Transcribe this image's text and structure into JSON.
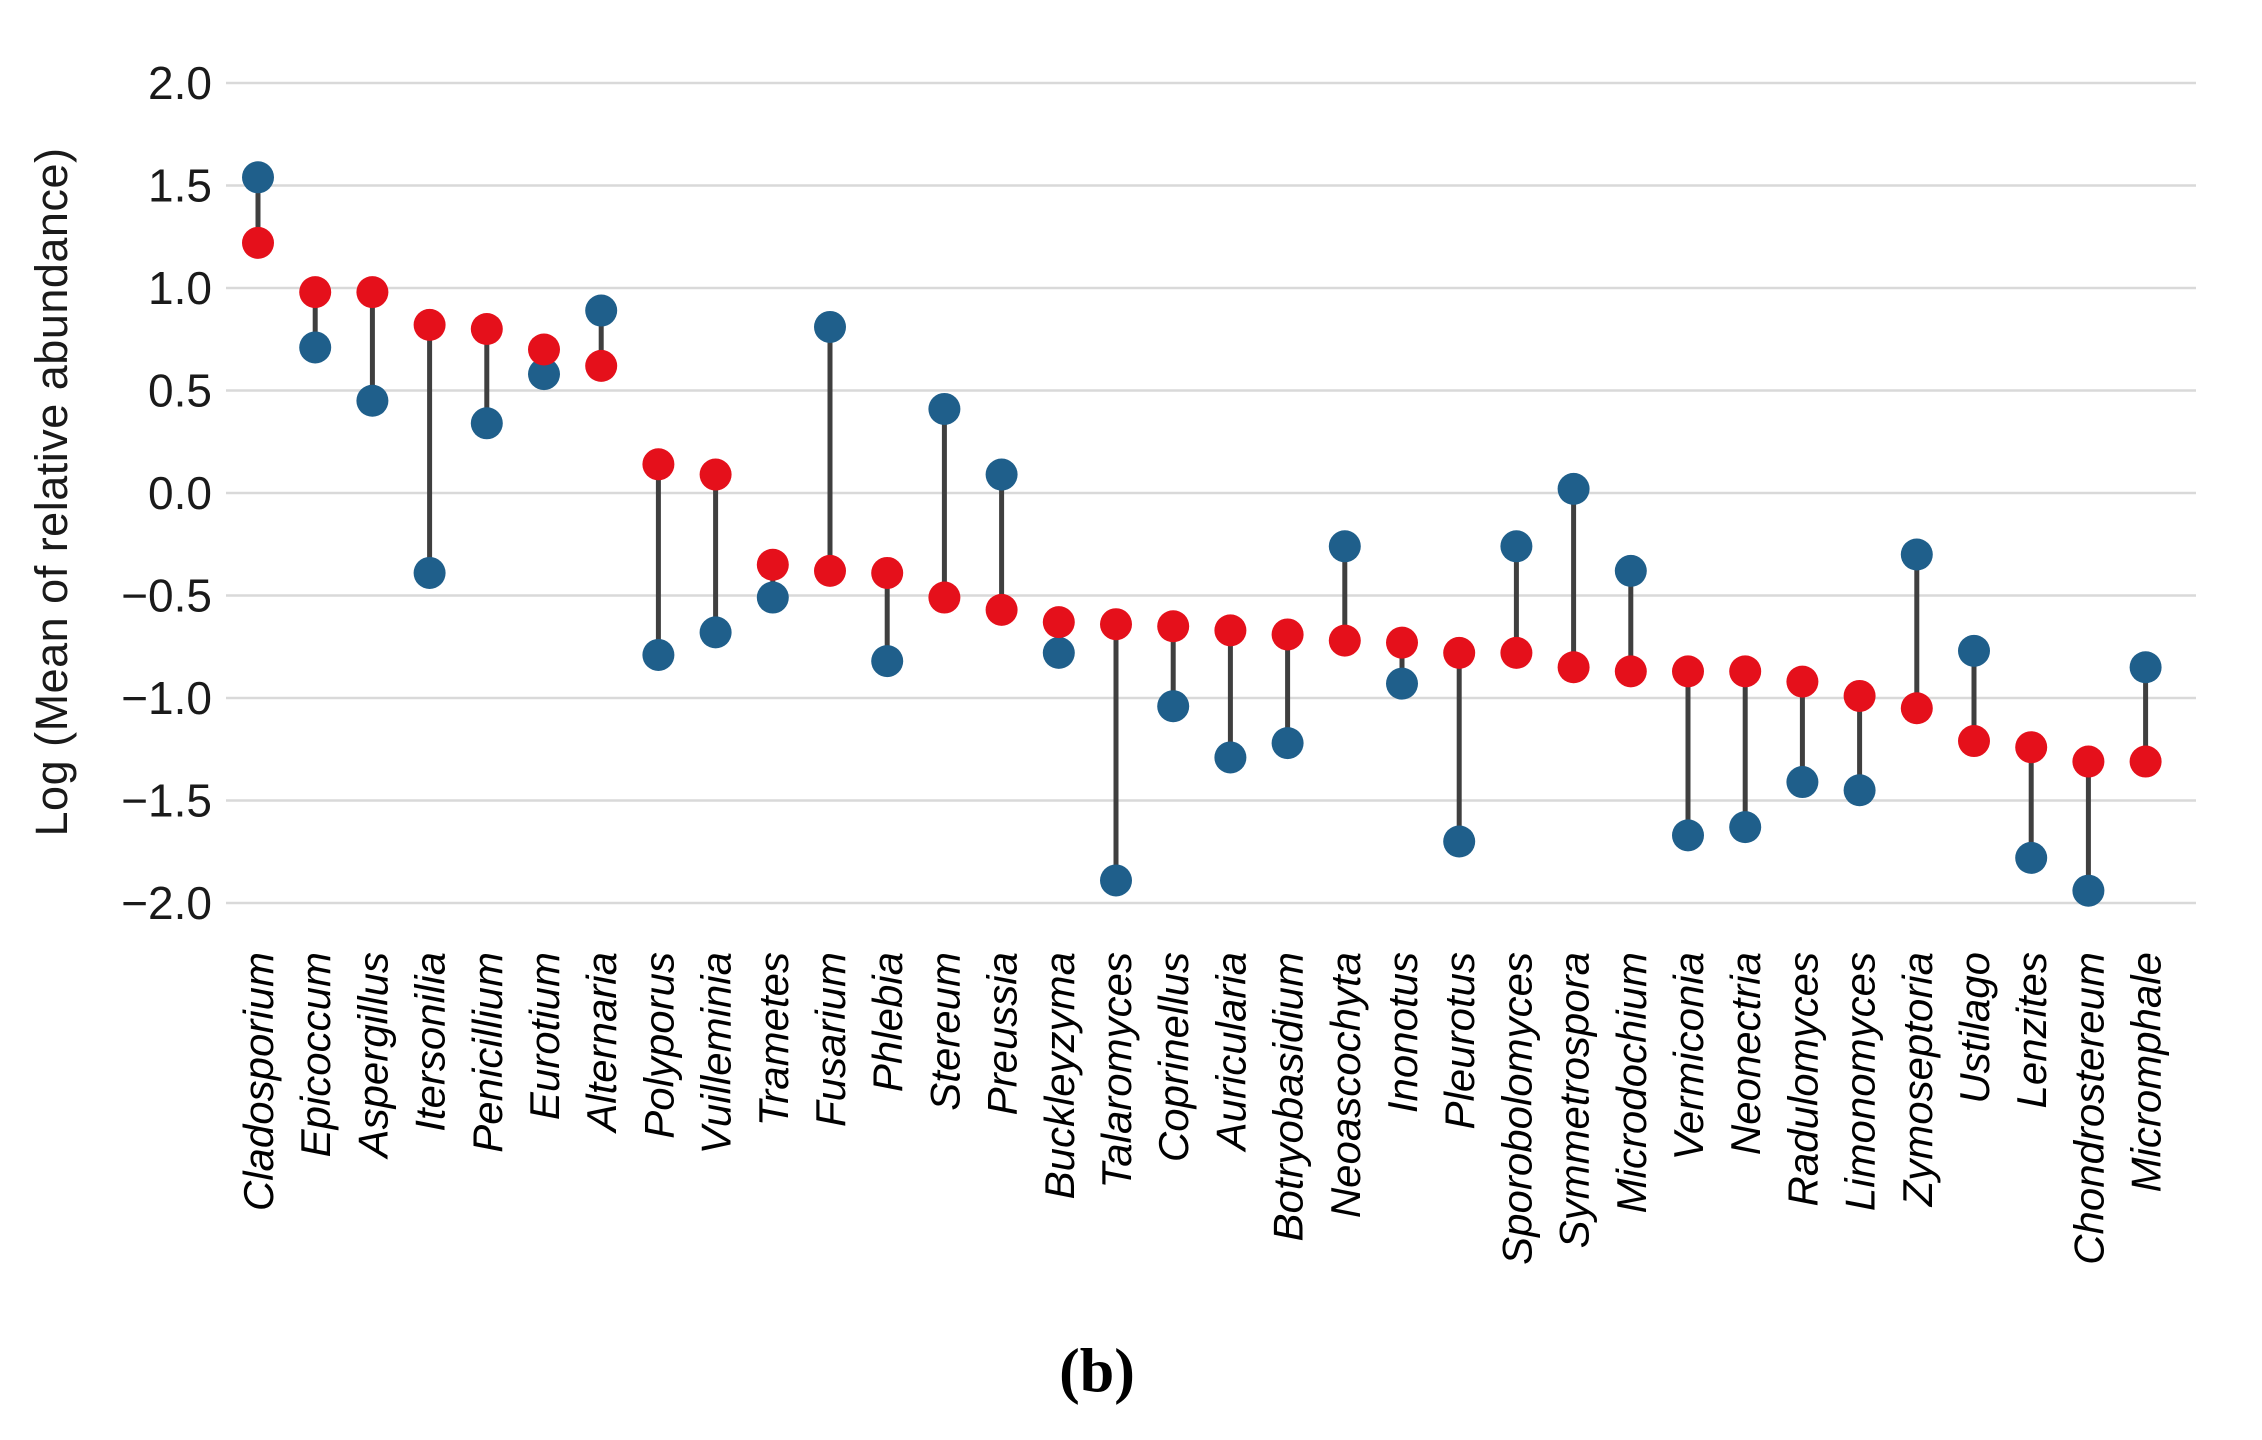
{
  "figure": {
    "caption": "(b)",
    "background": "#ffffff"
  },
  "chart_data": {
    "type": "dumbbell",
    "title": "",
    "xlabel": "",
    "ylabel": "Log (Mean of relative abundance)",
    "ylim": [
      -2.0,
      2.0
    ],
    "grid": true,
    "legend_position": "none",
    "yticks": [
      2.0,
      1.5,
      1.0,
      0.5,
      0.0,
      -0.5,
      -1.0,
      -1.5,
      -2.0
    ],
    "ytick_labels": [
      "2.0",
      "1.5",
      "1.0",
      "0.5",
      "0.0",
      "−0.5",
      "−1.0",
      "−1.5",
      "−2.0"
    ],
    "categories": [
      "Cladosporium",
      "Epicoccum",
      "Aspergillus",
      "Itersonilia",
      "Penicillium",
      "Eurotium",
      "Alternaria",
      "Polyporus",
      "Vuilleminia",
      "Trametes",
      "Fusarium",
      "Phlebia",
      "Stereum",
      "Preussia",
      "Buckleyzyma",
      "Talaromyces",
      "Coprinellus",
      "Auricularia",
      "Botryobasidium",
      "Neoascochyta",
      "Inonotus",
      "Pleurotus",
      "Sporobolomyces",
      "Symmetrospora",
      "Microdochium",
      "Vermiconia",
      "Neonectria",
      "Radulomyces",
      "Limonomyces",
      "Zymoseptoria",
      "Ustilago",
      "Lenzites",
      "Chondrostereum",
      "Micromphale"
    ],
    "series": [
      {
        "name": "blue",
        "color": "#1f5f8b",
        "values": [
          1.54,
          0.71,
          0.45,
          -0.39,
          0.34,
          0.58,
          0.89,
          -0.79,
          -0.68,
          -0.51,
          0.81,
          -0.82,
          0.41,
          0.09,
          -0.78,
          -1.89,
          -1.04,
          -1.29,
          -1.22,
          -0.26,
          -0.93,
          -1.7,
          -0.26,
          0.02,
          -0.38,
          -1.67,
          -1.63,
          -1.41,
          -1.45,
          -0.3,
          -0.77,
          -1.78,
          -1.94,
          -0.85
        ]
      },
      {
        "name": "red",
        "color": "#e5101b",
        "values": [
          1.22,
          0.98,
          0.98,
          0.82,
          0.8,
          0.7,
          0.62,
          0.14,
          0.09,
          -0.35,
          -0.38,
          -0.39,
          -0.51,
          -0.57,
          -0.63,
          -0.64,
          -0.65,
          -0.67,
          -0.69,
          -0.72,
          -0.73,
          -0.78,
          -0.78,
          -0.85,
          -0.87,
          -0.87,
          -0.87,
          -0.92,
          -0.99,
          -1.05,
          -1.21,
          -1.24,
          -1.31,
          -1.31
        ]
      }
    ],
    "style": {
      "connector_color": "#3f3f3f",
      "connector_width": 5,
      "dot_radius": 16,
      "gridline_color": "#d9d9d9",
      "text_color": "#1a1a1a"
    }
  }
}
